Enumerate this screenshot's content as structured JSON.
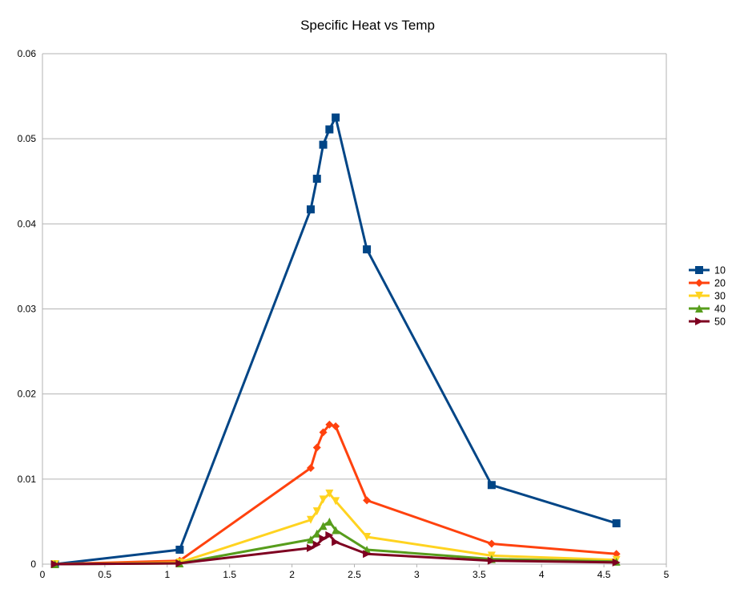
{
  "chart_data": {
    "type": "line",
    "title": "Specific Heat vs Temp",
    "xlabel": "",
    "ylabel": "",
    "xlim": [
      0,
      5
    ],
    "ylim": [
      0,
      0.06
    ],
    "x_ticks": [
      0,
      0.5,
      1,
      1.5,
      2,
      2.5,
      3,
      3.5,
      4,
      4.5,
      5
    ],
    "x_tick_labels": [
      "0",
      "0.5",
      "1",
      "1.5",
      "2",
      "2.5",
      "3",
      "3.5",
      "4",
      "4.5",
      "5"
    ],
    "y_ticks": [
      0,
      0.01,
      0.02,
      0.03,
      0.04,
      0.05,
      0.06
    ],
    "y_tick_labels": [
      "0",
      "0.01",
      "0.02",
      "0.03",
      "0.04",
      "0.05",
      "0.06"
    ],
    "grid": "horizontal",
    "legend": "right",
    "series": [
      {
        "name": "10",
        "color": "#004586",
        "marker": "square",
        "x": [
          0.1,
          1.1,
          2.15,
          2.2,
          2.25,
          2.3,
          2.35,
          2.6,
          3.6,
          4.6
        ],
        "y": [
          0.0,
          0.0017,
          0.0417,
          0.0453,
          0.0493,
          0.0511,
          0.0525,
          0.037,
          0.0093,
          0.0048
        ]
      },
      {
        "name": "20",
        "color": "#ff420e",
        "marker": "diamond",
        "x": [
          0.1,
          1.1,
          2.15,
          2.2,
          2.25,
          2.3,
          2.35,
          2.6,
          3.6,
          4.6
        ],
        "y": [
          0.0,
          0.0004,
          0.0113,
          0.0137,
          0.0155,
          0.0164,
          0.0162,
          0.0075,
          0.0024,
          0.0012
        ]
      },
      {
        "name": "30",
        "color": "#ffd320",
        "marker": "triangle-down",
        "x": [
          0.1,
          1.1,
          2.15,
          2.2,
          2.25,
          2.3,
          2.35,
          2.6,
          3.6,
          4.6
        ],
        "y": [
          0.0,
          0.0002,
          0.0052,
          0.0062,
          0.0076,
          0.0083,
          0.0074,
          0.0032,
          0.001,
          0.0005
        ]
      },
      {
        "name": "40",
        "color": "#579d1c",
        "marker": "triangle-up",
        "x": [
          0.1,
          1.1,
          2.15,
          2.2,
          2.25,
          2.3,
          2.35,
          2.6,
          3.6,
          4.6
        ],
        "y": [
          0.0,
          0.0001,
          0.0029,
          0.0036,
          0.0045,
          0.005,
          0.004,
          0.0017,
          0.0006,
          0.0003
        ]
      },
      {
        "name": "50",
        "color": "#7e0021",
        "marker": "triangle-right",
        "x": [
          0.1,
          1.1,
          2.15,
          2.2,
          2.25,
          2.3,
          2.35,
          2.6,
          3.6,
          4.6
        ],
        "y": [
          0.0,
          0.0001,
          0.0019,
          0.0023,
          0.003,
          0.0034,
          0.0026,
          0.0012,
          0.0004,
          0.0002
        ]
      }
    ]
  }
}
